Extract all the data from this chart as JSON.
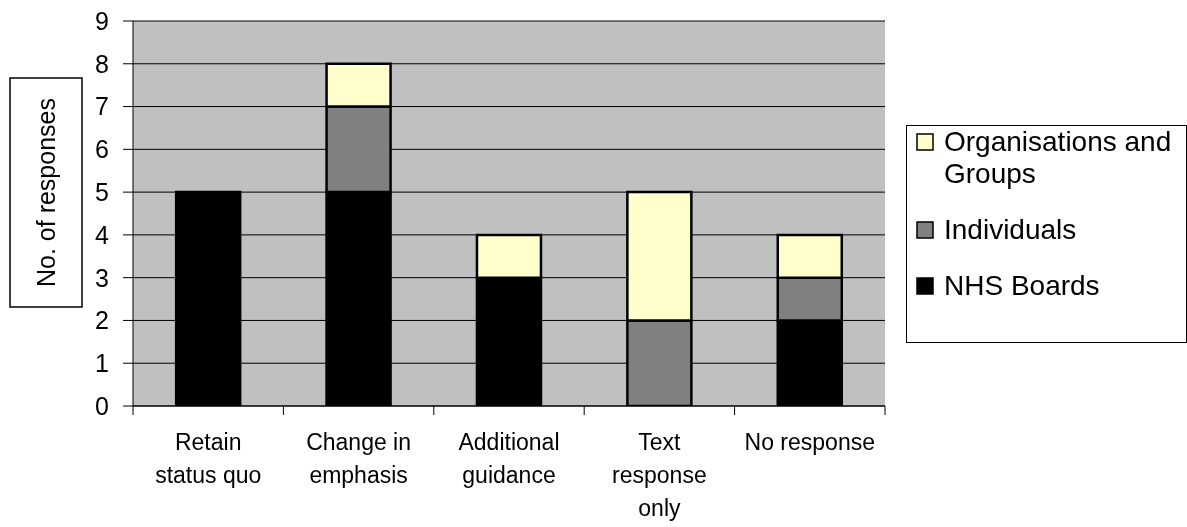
{
  "chart_data": {
    "type": "bar",
    "ylabel": "No. of responses",
    "categories": [
      "Retain status quo",
      "Change in emphasis",
      "Additional guidance",
      "Text response only",
      "No response"
    ],
    "series": [
      {
        "name": "NHS Boards",
        "color": "#000000",
        "values": [
          5,
          5,
          3,
          0,
          2
        ]
      },
      {
        "name": "Individuals",
        "color": "#808080",
        "values": [
          0,
          2,
          0,
          2,
          1
        ]
      },
      {
        "name": "Organisations and Groups",
        "color": "#ffffcc",
        "values": [
          0,
          1,
          1,
          3,
          1
        ]
      }
    ],
    "stacked": true,
    "ylim": [
      0,
      9
    ],
    "yticks": [
      0,
      1,
      2,
      3,
      4,
      5,
      6,
      7,
      8,
      9
    ],
    "grid": "y",
    "legend": "right"
  }
}
